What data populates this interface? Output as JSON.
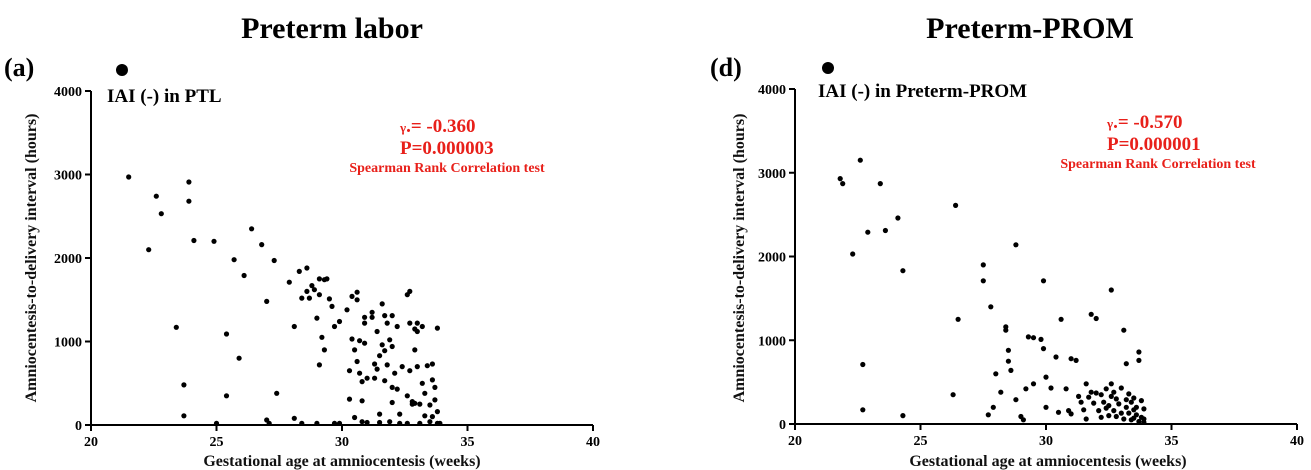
{
  "chart_data": [
    {
      "type": "scatter",
      "title": "Preterm labor",
      "panel_label": "(a)",
      "legend": "IAI (-) in PTL",
      "xlabel": "Gestational age at amniocentesis (weeks)",
      "ylabel": "Amniocentesis-to-delivery interval (hours)",
      "xlim": [
        20,
        40
      ],
      "ylim": [
        0,
        4000
      ],
      "xticks": [
        "20",
        "25",
        "30",
        "35",
        "40"
      ],
      "yticks": [
        "0",
        "1000",
        "2000",
        "3000",
        "4000"
      ],
      "stat_r_symbol": "γ",
      "stat_r_value": ".= -0.360",
      "stat_p": "P=0.000003",
      "stat_test": "Spearman Rank Correlation test",
      "stat_color": "#e8201a",
      "marker_color": "#000000",
      "grid": false,
      "points": [
        [
          21.5,
          2970
        ],
        [
          22.3,
          2100
        ],
        [
          22.6,
          2740
        ],
        [
          22.8,
          2530
        ],
        [
          23.4,
          1170
        ],
        [
          23.7,
          480
        ],
        [
          23.7,
          110
        ],
        [
          23.9,
          2910
        ],
        [
          23.9,
          2680
        ],
        [
          24.1,
          2210
        ],
        [
          24.9,
          2200
        ],
        [
          25.0,
          20
        ],
        [
          25.4,
          1090
        ],
        [
          25.4,
          350
        ],
        [
          25.7,
          1980
        ],
        [
          25.9,
          800
        ],
        [
          26.1,
          1790
        ],
        [
          26.4,
          2350
        ],
        [
          26.8,
          2160
        ],
        [
          27.0,
          1480
        ],
        [
          27.0,
          60
        ],
        [
          27.1,
          20
        ],
        [
          27.3,
          1970
        ],
        [
          27.4,
          380
        ],
        [
          27.9,
          1710
        ],
        [
          28.1,
          1180
        ],
        [
          28.1,
          80
        ],
        [
          28.3,
          1840
        ],
        [
          28.4,
          1520
        ],
        [
          28.4,
          20
        ],
        [
          28.6,
          1880
        ],
        [
          28.6,
          1600
        ],
        [
          28.7,
          1520
        ],
        [
          28.8,
          1670
        ],
        [
          28.9,
          1620
        ],
        [
          29.0,
          1280
        ],
        [
          29.0,
          20
        ],
        [
          29.1,
          1750
        ],
        [
          29.1,
          1560
        ],
        [
          29.1,
          720
        ],
        [
          29.2,
          1050
        ],
        [
          29.3,
          1740
        ],
        [
          29.3,
          900
        ],
        [
          29.4,
          1750
        ],
        [
          29.5,
          1510
        ],
        [
          29.6,
          1420
        ],
        [
          29.7,
          1180
        ],
        [
          29.7,
          20
        ],
        [
          29.9,
          1240
        ],
        [
          29.9,
          20
        ],
        [
          30.2,
          1380
        ],
        [
          30.3,
          650
        ],
        [
          30.3,
          310
        ],
        [
          30.4,
          1540
        ],
        [
          30.4,
          1030
        ],
        [
          30.5,
          900
        ],
        [
          30.5,
          90
        ],
        [
          30.6,
          1590
        ],
        [
          30.6,
          1500
        ],
        [
          30.6,
          760
        ],
        [
          30.7,
          1010
        ],
        [
          30.7,
          620
        ],
        [
          30.8,
          520
        ],
        [
          30.8,
          290
        ],
        [
          30.8,
          40
        ],
        [
          30.9,
          1290
        ],
        [
          30.9,
          1220
        ],
        [
          30.9,
          980
        ],
        [
          31.0,
          560
        ],
        [
          31.0,
          30
        ],
        [
          31.2,
          1350
        ],
        [
          31.2,
          1290
        ],
        [
          31.3,
          730
        ],
        [
          31.3,
          560
        ],
        [
          31.4,
          1120
        ],
        [
          31.4,
          670
        ],
        [
          31.5,
          830
        ],
        [
          31.5,
          130
        ],
        [
          31.5,
          30
        ],
        [
          31.6,
          1450
        ],
        [
          31.6,
          960
        ],
        [
          31.7,
          1310
        ],
        [
          31.7,
          890
        ],
        [
          31.7,
          530
        ],
        [
          31.8,
          1220
        ],
        [
          31.8,
          720
        ],
        [
          31.9,
          1020
        ],
        [
          31.9,
          40
        ],
        [
          32.0,
          1310
        ],
        [
          32.0,
          940
        ],
        [
          32.0,
          450
        ],
        [
          32.0,
          270
        ],
        [
          32.1,
          620
        ],
        [
          32.2,
          1180
        ],
        [
          32.2,
          430
        ],
        [
          32.3,
          130
        ],
        [
          32.3,
          20
        ],
        [
          32.4,
          700
        ],
        [
          32.6,
          1560
        ],
        [
          32.6,
          350
        ],
        [
          32.6,
          20
        ],
        [
          32.7,
          1600
        ],
        [
          32.7,
          1220
        ],
        [
          32.7,
          650
        ],
        [
          32.8,
          280
        ],
        [
          32.8,
          250
        ],
        [
          32.9,
          1150
        ],
        [
          32.9,
          260
        ],
        [
          33.0,
          1220
        ],
        [
          33.0,
          1120
        ],
        [
          33.0,
          700
        ],
        [
          33.1,
          250
        ],
        [
          33.1,
          20
        ],
        [
          33.2,
          1180
        ],
        [
          33.2,
          500
        ],
        [
          33.3,
          380
        ],
        [
          33.3,
          110
        ],
        [
          33.4,
          710
        ],
        [
          33.5,
          240
        ],
        [
          33.5,
          40
        ],
        [
          33.6,
          730
        ],
        [
          33.6,
          540
        ],
        [
          33.6,
          100
        ],
        [
          33.7,
          450
        ],
        [
          33.7,
          300
        ],
        [
          33.8,
          1160
        ],
        [
          33.8,
          160
        ],
        [
          33.8,
          20
        ],
        [
          33.9,
          20
        ],
        [
          32.9,
          900
        ]
      ]
    },
    {
      "type": "scatter",
      "title": "Preterm-PROM",
      "panel_label": "(d)",
      "legend": "IAI (-) in Preterm-PROM",
      "xlabel": "Gestational age at amniocentesis (weeks)",
      "ylabel": "Amniocentesis-to-delivery interval (hours)",
      "xlim": [
        20,
        40
      ],
      "ylim": [
        0,
        4000
      ],
      "xticks": [
        "20",
        "25",
        "30",
        "35",
        "40"
      ],
      "yticks": [
        "0",
        "1000",
        "2000",
        "3000",
        "4000"
      ],
      "stat_r_symbol": "γ",
      "stat_r_value": ".= -0.570",
      "stat_p": "P=0.000001",
      "stat_test": "Spearman Rank Correlation test",
      "stat_color": "#e8201a",
      "marker_color": "#000000",
      "grid": false,
      "points": [
        [
          21.8,
          2930
        ],
        [
          21.9,
          2870
        ],
        [
          22.3,
          2030
        ],
        [
          22.6,
          3150
        ],
        [
          22.7,
          710
        ],
        [
          22.7,
          170
        ],
        [
          22.9,
          2290
        ],
        [
          23.4,
          2870
        ],
        [
          23.6,
          2310
        ],
        [
          24.1,
          2460
        ],
        [
          24.3,
          1830
        ],
        [
          24.3,
          100
        ],
        [
          26.3,
          350
        ],
        [
          26.4,
          2610
        ],
        [
          26.5,
          1250
        ],
        [
          27.5,
          1900
        ],
        [
          27.5,
          1710
        ],
        [
          27.7,
          110
        ],
        [
          27.8,
          1400
        ],
        [
          27.9,
          200
        ],
        [
          28.0,
          600
        ],
        [
          28.2,
          380
        ],
        [
          28.4,
          1160
        ],
        [
          28.4,
          1120
        ],
        [
          28.5,
          880
        ],
        [
          28.5,
          750
        ],
        [
          28.6,
          640
        ],
        [
          28.8,
          2140
        ],
        [
          28.8,
          290
        ],
        [
          29.0,
          90
        ],
        [
          29.1,
          50
        ],
        [
          29.2,
          420
        ],
        [
          29.3,
          1040
        ],
        [
          29.5,
          1030
        ],
        [
          29.5,
          480
        ],
        [
          29.8,
          1010
        ],
        [
          29.9,
          1710
        ],
        [
          29.9,
          900
        ],
        [
          30.0,
          560
        ],
        [
          30.0,
          200
        ],
        [
          30.2,
          430
        ],
        [
          30.4,
          800
        ],
        [
          30.5,
          140
        ],
        [
          30.6,
          1250
        ],
        [
          30.8,
          420
        ],
        [
          30.9,
          160
        ],
        [
          31.0,
          780
        ],
        [
          31.0,
          120
        ],
        [
          31.2,
          760
        ],
        [
          31.3,
          330
        ],
        [
          31.4,
          260
        ],
        [
          31.5,
          170
        ],
        [
          31.6,
          480
        ],
        [
          31.6,
          60
        ],
        [
          31.7,
          320
        ],
        [
          31.8,
          1310
        ],
        [
          31.8,
          380
        ],
        [
          31.9,
          250
        ],
        [
          32.0,
          1260
        ],
        [
          32.0,
          370
        ],
        [
          32.1,
          160
        ],
        [
          32.2,
          350
        ],
        [
          32.2,
          80
        ],
        [
          32.3,
          260
        ],
        [
          32.4,
          420
        ],
        [
          32.4,
          190
        ],
        [
          32.5,
          220
        ],
        [
          32.5,
          100
        ],
        [
          32.6,
          1600
        ],
        [
          32.6,
          480
        ],
        [
          32.6,
          330
        ],
        [
          32.7,
          380
        ],
        [
          32.7,
          160
        ],
        [
          32.8,
          300
        ],
        [
          32.8,
          90
        ],
        [
          32.9,
          240
        ],
        [
          33.0,
          430
        ],
        [
          33.0,
          130
        ],
        [
          33.1,
          1120
        ],
        [
          33.1,
          60
        ],
        [
          33.2,
          720
        ],
        [
          33.2,
          290
        ],
        [
          33.2,
          200
        ],
        [
          33.3,
          360
        ],
        [
          33.3,
          130
        ],
        [
          33.4,
          260
        ],
        [
          33.4,
          50
        ],
        [
          33.5,
          310
        ],
        [
          33.5,
          170
        ],
        [
          33.5,
          70
        ],
        [
          33.6,
          200
        ],
        [
          33.6,
          110
        ],
        [
          33.7,
          860
        ],
        [
          33.7,
          760
        ],
        [
          33.7,
          30
        ],
        [
          33.8,
          280
        ],
        [
          33.8,
          80
        ],
        [
          33.9,
          180
        ],
        [
          33.9,
          60
        ],
        [
          33.9,
          20
        ]
      ]
    }
  ]
}
